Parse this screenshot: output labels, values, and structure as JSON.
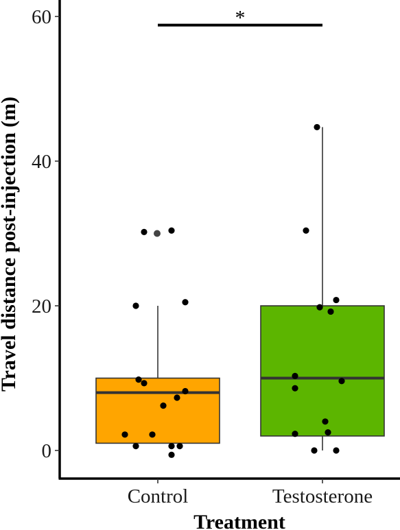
{
  "chart_data": {
    "type": "box",
    "xlabel": "Treatment",
    "ylabel": "Travel distance post-injection (m)",
    "ylim": [
      -4,
      62
    ],
    "yticks": [
      0,
      20,
      40,
      60
    ],
    "categories": [
      "Control",
      "Testosterone"
    ],
    "significance": {
      "label": "*",
      "between": [
        "Control",
        "Testosterone"
      ],
      "y": 58.8
    },
    "grid": false,
    "legend": "none",
    "boxes": [
      {
        "category": "Control",
        "color": "#FFA500",
        "q1": 1.0,
        "median": 8.0,
        "q3": 10.0,
        "whisker_low": 1.0,
        "whisker_high": 20.0,
        "outliers": [
          30.0
        ],
        "points": [
          {
            "x": -0.05,
            "y": 30.2
          },
          {
            "x": 0.05,
            "y": 30.4
          },
          {
            "x": -0.08,
            "y": 20.0
          },
          {
            "x": 0.1,
            "y": 20.5
          },
          {
            "x": -0.07,
            "y": 9.8
          },
          {
            "x": -0.05,
            "y": 9.3
          },
          {
            "x": 0.1,
            "y": 8.2
          },
          {
            "x": 0.07,
            "y": 7.3
          },
          {
            "x": 0.02,
            "y": 6.2
          },
          {
            "x": -0.12,
            "y": 2.2
          },
          {
            "x": -0.02,
            "y": 2.2
          },
          {
            "x": -0.08,
            "y": 0.6
          },
          {
            "x": 0.05,
            "y": 0.6
          },
          {
            "x": 0.08,
            "y": 0.6
          },
          {
            "x": 0.05,
            "y": -0.6
          }
        ]
      },
      {
        "category": "Testosterone",
        "color": "#5CB500",
        "q1": 2.0,
        "median": 10.0,
        "q3": 20.0,
        "whisker_low": 0.0,
        "whisker_high": 44.7,
        "outliers": [],
        "points": [
          {
            "x": -0.02,
            "y": 44.7
          },
          {
            "x": -0.06,
            "y": 30.4
          },
          {
            "x": 0.05,
            "y": 20.8
          },
          {
            "x": -0.01,
            "y": 19.8
          },
          {
            "x": 0.03,
            "y": 19.2
          },
          {
            "x": -0.1,
            "y": 10.3
          },
          {
            "x": 0.07,
            "y": 9.6
          },
          {
            "x": -0.1,
            "y": 8.6
          },
          {
            "x": 0.01,
            "y": 4.0
          },
          {
            "x": -0.1,
            "y": 2.3
          },
          {
            "x": 0.02,
            "y": 2.5
          },
          {
            "x": -0.03,
            "y": 0.0
          },
          {
            "x": 0.05,
            "y": 0.0
          }
        ]
      }
    ]
  }
}
